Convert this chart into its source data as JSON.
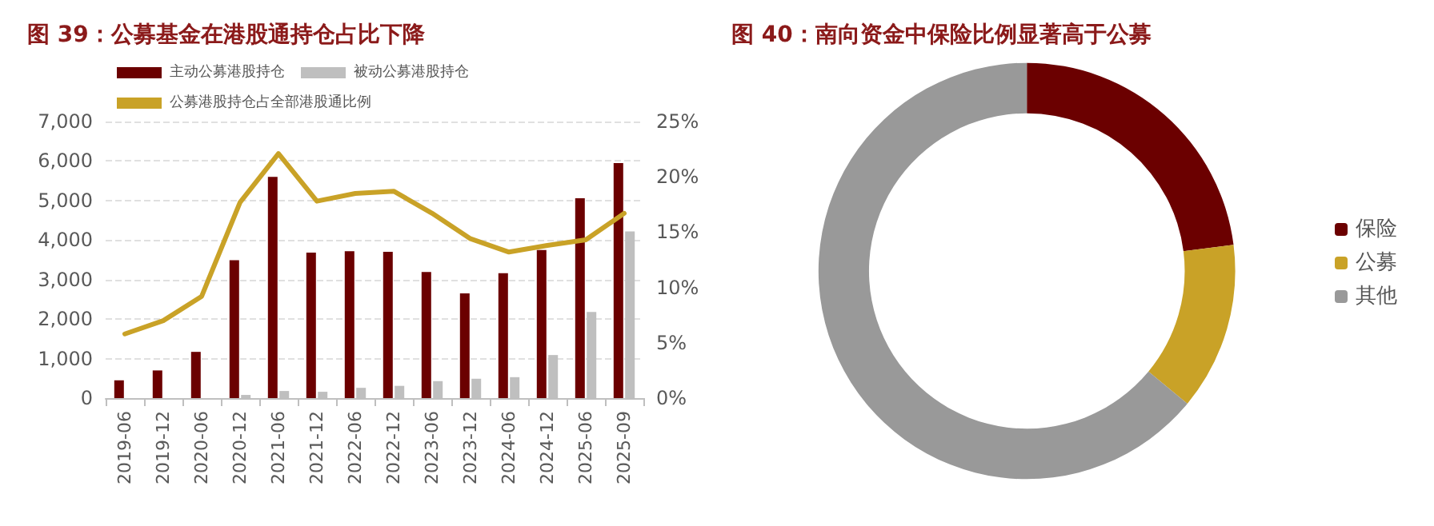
{
  "chart_data": [
    {
      "type": "bar",
      "title": "图 39：公募基金在港股通持仓占比下降",
      "categories": [
        "2019-06",
        "2019-12",
        "2020-06",
        "2020-12",
        "2021-06",
        "2021-12",
        "2022-06",
        "2022-12",
        "2023-06",
        "2023-12",
        "2024-06",
        "2024-12",
        "2025-06",
        "2025-09"
      ],
      "series": [
        {
          "name": "主动公募港股持仓",
          "color": "#6b0000",
          "values": [
            450,
            700,
            1170,
            3490,
            5600,
            3680,
            3720,
            3700,
            3190,
            2650,
            3160,
            3750,
            5060,
            5950
          ]
        },
        {
          "name": "被动公募港股持仓",
          "color": "#bfbfbf",
          "values": [
            null,
            null,
            null,
            80,
            180,
            160,
            260,
            310,
            430,
            490,
            530,
            1090,
            2180,
            4220
          ]
        },
        {
          "name": "公募港股持仓占全部港股通比例",
          "type": "line",
          "axis": "y2",
          "color": "#c9a227",
          "values": [
            5.8,
            7.0,
            9.2,
            17.7,
            22.1,
            17.8,
            18.5,
            18.7,
            16.7,
            14.4,
            13.2,
            13.8,
            14.3,
            16.7
          ]
        }
      ],
      "ylim": [
        0,
        7000
      ],
      "yticks": [
        0,
        {
          "value": 1000,
          "label": "1,000"
        },
        {
          "value": 2000,
          "label": "2,000"
        },
        {
          "value": 3000,
          "label": "3,000"
        },
        {
          "value": 4000,
          "label": "4,000"
        },
        {
          "value": 5000,
          "label": "5,000"
        },
        {
          "value": 6000,
          "label": "6,000"
        },
        {
          "value": 7000,
          "label": "7,000"
        }
      ],
      "y2lim": [
        0,
        25
      ],
      "y2ticks": [
        {
          "value": 0,
          "label": "0%"
        },
        {
          "value": 5,
          "label": "5%"
        },
        {
          "value": 10,
          "label": "10%"
        },
        {
          "value": 15,
          "label": "15%"
        },
        {
          "value": 20,
          "label": "20%"
        },
        {
          "value": 25,
          "label": "25%"
        }
      ],
      "grid": "y",
      "legend": "top",
      "marker": "none",
      "line_style": "solid"
    },
    {
      "type": "donut",
      "title": "图 40：南向资金中保险比例显著高于公募",
      "categories": [
        "保险",
        "公募",
        "其他"
      ],
      "values": [
        23,
        13,
        64
      ],
      "colors": [
        "#6b0000",
        "#c9a227",
        "#999999"
      ],
      "legend": "right"
    }
  ]
}
